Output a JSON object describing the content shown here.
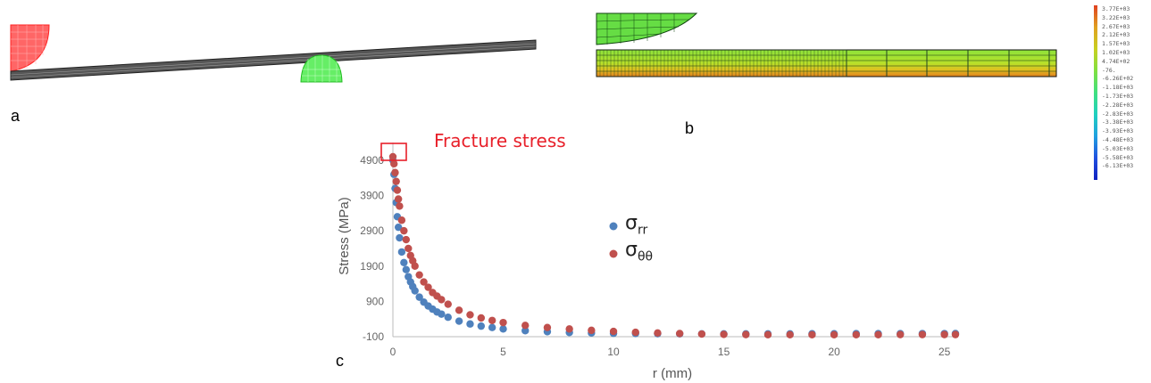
{
  "panels": {
    "a": "a",
    "b": "b",
    "c": "c"
  },
  "colorbar_labels": [
    "3.77E+03",
    "3.22E+03",
    "2.67E+03",
    "2.12E+03",
    "1.57E+03",
    "1.02E+03",
    "4.74E+02",
    "-76.",
    "-6.26E+02",
    "-1.18E+03",
    "-1.73E+03",
    "-2.28E+03",
    "-2.83E+03",
    "-3.38E+03",
    "-3.93E+03",
    "-4.48E+03",
    "-5.03E+03",
    "-5.58E+03",
    "-6.13E+03"
  ],
  "colors": {
    "red_series": "#c0504d",
    "blue_series": "#4f81bd",
    "annotation": "#e8202a"
  },
  "chart_data": {
    "type": "scatter",
    "title": "",
    "annotation": "Fracture stress",
    "xlabel": "r (mm)",
    "ylabel": "Stress  (MPa)",
    "xlim": [
      0,
      25.5
    ],
    "ylim": [
      -100,
      5200
    ],
    "x_ticks": [
      0,
      5,
      10,
      15,
      20,
      25
    ],
    "y_ticks": [
      -100,
      900,
      1900,
      2900,
      3900,
      4900
    ],
    "grid": false,
    "legend_position": "center-right",
    "series": [
      {
        "name": "σrr",
        "label_main": "σ",
        "label_sub": "rr",
        "color": "#4f81bd",
        "x": [
          0.0,
          0.05,
          0.1,
          0.15,
          0.2,
          0.25,
          0.3,
          0.4,
          0.5,
          0.6,
          0.7,
          0.8,
          0.9,
          1.0,
          1.2,
          1.4,
          1.6,
          1.8,
          2.0,
          2.2,
          2.5,
          3.0,
          3.5,
          4.0,
          4.5,
          5.0,
          6,
          7,
          8,
          9,
          10,
          11,
          12,
          13,
          14,
          15,
          16,
          17,
          18,
          19,
          20,
          21,
          22,
          23,
          24,
          25,
          25.5
        ],
        "y": [
          4900,
          4500,
          4100,
          3700,
          3300,
          3000,
          2700,
          2300,
          2000,
          1800,
          1600,
          1450,
          1320,
          1200,
          1020,
          880,
          770,
          680,
          600,
          540,
          450,
          340,
          260,
          200,
          160,
          120,
          70,
          40,
          20,
          5,
          -5,
          -10,
          -15,
          -18,
          -20,
          -20,
          -20,
          -20,
          -20,
          -18,
          -18,
          -15,
          -15,
          -15,
          -12,
          -12,
          -10
        ]
      },
      {
        "name": "σθθ",
        "label_main": "σ",
        "label_sub": "θθ",
        "color": "#c0504d",
        "x": [
          0.0,
          0.05,
          0.1,
          0.15,
          0.2,
          0.25,
          0.3,
          0.4,
          0.5,
          0.6,
          0.7,
          0.8,
          0.9,
          1.0,
          1.2,
          1.4,
          1.6,
          1.8,
          2.0,
          2.2,
          2.5,
          3.0,
          3.5,
          4.0,
          4.5,
          5.0,
          6,
          7,
          8,
          9,
          10,
          11,
          12,
          13,
          14,
          15,
          16,
          17,
          18,
          19,
          20,
          21,
          22,
          23,
          24,
          25,
          25.5
        ],
        "y": [
          5000,
          4800,
          4550,
          4300,
          4050,
          3800,
          3600,
          3200,
          2900,
          2650,
          2400,
          2200,
          2050,
          1900,
          1650,
          1450,
          1300,
          1150,
          1050,
          950,
          820,
          650,
          520,
          430,
          360,
          300,
          220,
          160,
          120,
          80,
          50,
          25,
          5,
          -10,
          -25,
          -35,
          -40,
          -45,
          -45,
          -45,
          -45,
          -45,
          -45,
          -40,
          -40,
          -40,
          -40
        ]
      }
    ]
  }
}
